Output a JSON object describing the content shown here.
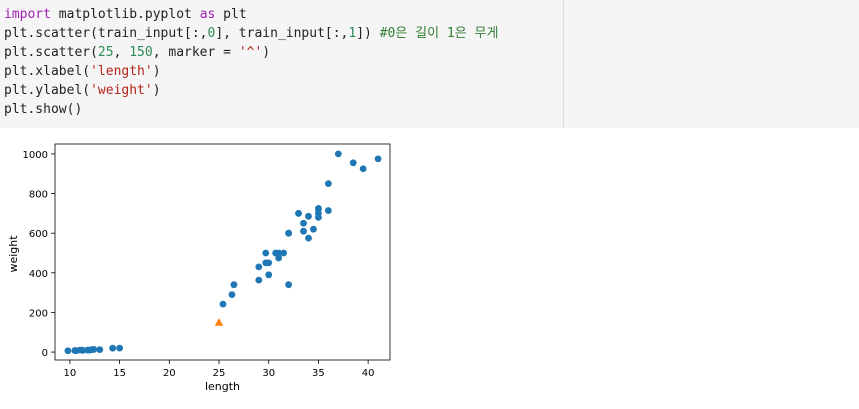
{
  "code_lines": [
    [
      {
        "t": "import",
        "c": "kw"
      },
      {
        "t": " matplotlib.pyplot ",
        "c": "plt"
      },
      {
        "t": "as",
        "c": "kw"
      },
      {
        "t": " plt",
        "c": "plt"
      }
    ],
    [
      {
        "t": "plt.scatter(train_input[:,",
        "c": "plt"
      },
      {
        "t": "0",
        "c": "num"
      },
      {
        "t": "], train_input[:,",
        "c": "plt"
      },
      {
        "t": "1",
        "c": "num"
      },
      {
        "t": "]) ",
        "c": "plt"
      },
      {
        "t": "#0은 길이 1은 무게",
        "c": "cmt"
      }
    ],
    [
      {
        "t": "plt.scatter(",
        "c": "plt"
      },
      {
        "t": "25",
        "c": "num"
      },
      {
        "t": ", ",
        "c": "plt"
      },
      {
        "t": "150",
        "c": "num"
      },
      {
        "t": ", marker = ",
        "c": "plt"
      },
      {
        "t": "'^'",
        "c": "str"
      },
      {
        "t": ")",
        "c": "plt"
      }
    ],
    [
      {
        "t": "plt.xlabel(",
        "c": "plt"
      },
      {
        "t": "'length'",
        "c": "str"
      },
      {
        "t": ")",
        "c": "plt"
      }
    ],
    [
      {
        "t": "plt.ylabel(",
        "c": "plt"
      },
      {
        "t": "'weight'",
        "c": "str"
      },
      {
        "t": ")",
        "c": "plt"
      }
    ],
    [
      {
        "t": "plt.show()",
        "c": "plt"
      }
    ]
  ],
  "chart_data": {
    "type": "scatter",
    "xlabel": "length",
    "ylabel": "weight",
    "xlim": [
      8.5,
      42.2
    ],
    "ylim": [
      -40,
      1050
    ],
    "xticks": [
      10,
      15,
      20,
      25,
      30,
      35,
      40
    ],
    "yticks": [
      0,
      200,
      400,
      600,
      800,
      1000
    ],
    "grid": false,
    "series": [
      {
        "marker": "circle",
        "color": "#1f77b4",
        "points": [
          [
            25.4,
            242
          ],
          [
            26.3,
            290
          ],
          [
            26.5,
            340
          ],
          [
            29.0,
            363
          ],
          [
            29.0,
            430
          ],
          [
            29.7,
            450
          ],
          [
            29.7,
            500
          ],
          [
            30.0,
            390
          ],
          [
            30.0,
            450
          ],
          [
            30.7,
            500
          ],
          [
            31.0,
            475
          ],
          [
            31.0,
            500
          ],
          [
            31.5,
            500
          ],
          [
            32.0,
            340
          ],
          [
            32.0,
            600
          ],
          [
            32.0,
            600
          ],
          [
            33.0,
            700
          ],
          [
            33.0,
            700
          ],
          [
            33.5,
            610
          ],
          [
            33.5,
            650
          ],
          [
            34.0,
            575
          ],
          [
            34.0,
            685
          ],
          [
            34.5,
            620
          ],
          [
            35.0,
            680
          ],
          [
            35.0,
            700
          ],
          [
            35.0,
            725
          ],
          [
            35.0,
            720
          ],
          [
            36.0,
            714
          ],
          [
            36.0,
            850
          ],
          [
            37.0,
            1000
          ],
          [
            38.5,
            955
          ],
          [
            39.5,
            925
          ],
          [
            41.0,
            975
          ],
          [
            9.8,
            6.7
          ],
          [
            10.5,
            7.5
          ],
          [
            10.6,
            7.0
          ],
          [
            11.0,
            9.7
          ],
          [
            11.2,
            9.8
          ],
          [
            11.3,
            8.7
          ],
          [
            11.8,
            10.0
          ],
          [
            11.8,
            9.9
          ],
          [
            12.0,
            9.8
          ],
          [
            12.2,
            12.2
          ],
          [
            12.4,
            13.4
          ],
          [
            13.0,
            12.2
          ],
          [
            14.3,
            19.7
          ],
          [
            15.0,
            19.9
          ]
        ]
      },
      {
        "marker": "triangle",
        "color": "#ff7f0e",
        "points": [
          [
            25,
            150
          ]
        ]
      }
    ]
  }
}
